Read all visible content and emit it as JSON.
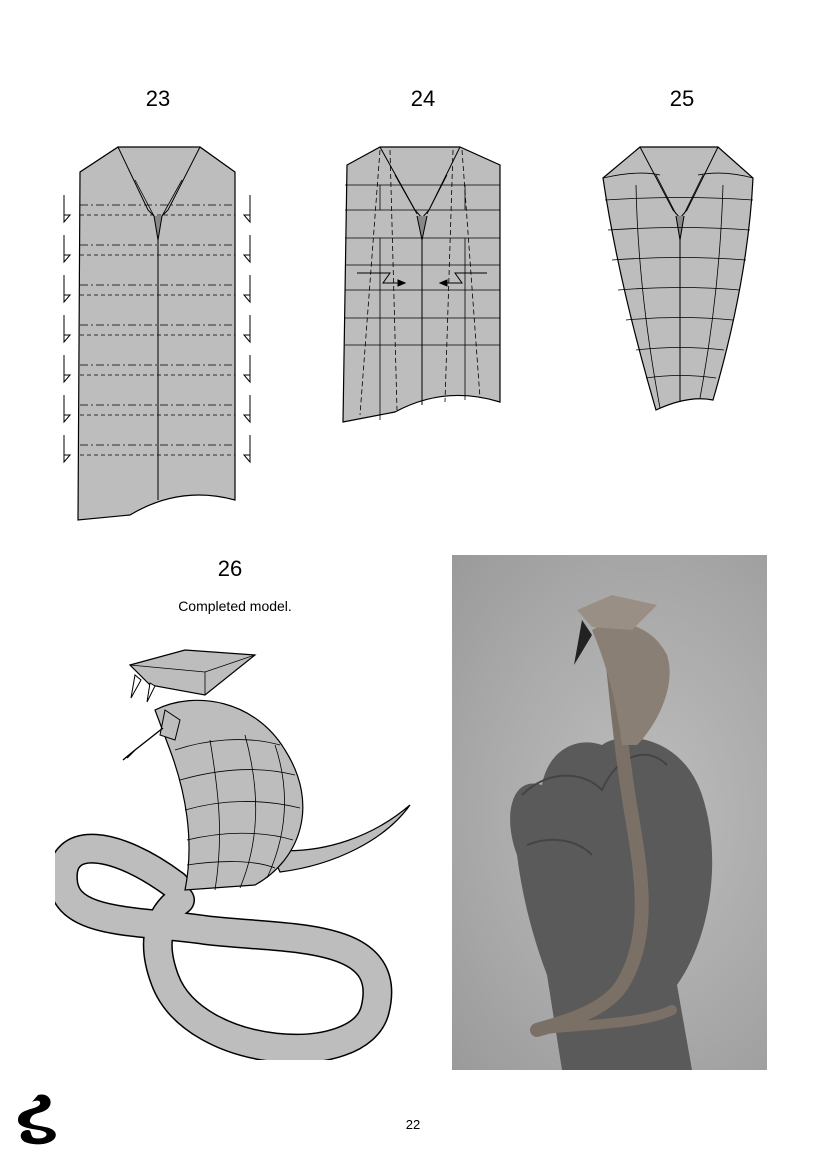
{
  "steps": [
    {
      "number": "23"
    },
    {
      "number": "24"
    },
    {
      "number": "25"
    },
    {
      "number": "26",
      "caption": "Completed model."
    }
  ],
  "page_number": "22",
  "colors": {
    "paper": "#bdbdbd",
    "line": "#000000",
    "page": "#ffffff"
  },
  "icons": {
    "logo": "cobra-logo-icon"
  }
}
